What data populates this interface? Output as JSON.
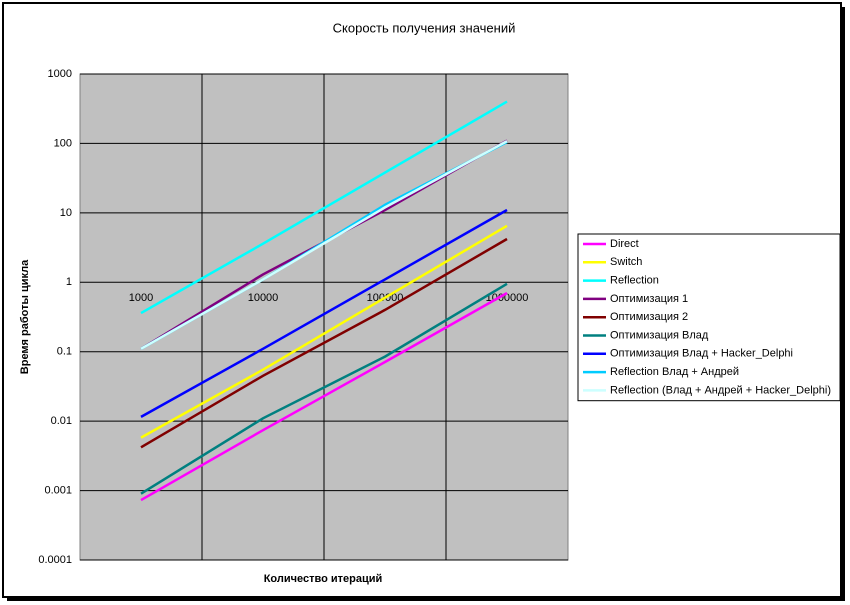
{
  "chart_data": {
    "type": "line",
    "title": "Скорость получения значений",
    "x_label": "Количество итераций",
    "y_label": "Время работы цикла",
    "categories": [
      "1000",
      "10000",
      "100000",
      "1000000"
    ],
    "log_y": true,
    "grid": true,
    "legend_position": "right",
    "plot_background": "#c0c0c0",
    "ylim": [
      0.0001,
      1000
    ],
    "yticks": [
      0.0001,
      0.001,
      0.01,
      0.1,
      1,
      10,
      100,
      1000
    ],
    "series": [
      {
        "name": "Direct",
        "color": "#ff00ff",
        "values": [
          0.00073,
          0.0074,
          0.071,
          0.7
        ]
      },
      {
        "name": "Switch",
        "color": "#ffff00",
        "values": [
          0.0058,
          0.055,
          0.6,
          6.5
        ]
      },
      {
        "name": "Reflection",
        "color": "#00ffff",
        "values": [
          0.36,
          3.6,
          38,
          400
        ]
      },
      {
        "name": "Оптимизация 1",
        "color": "#800080",
        "values": [
          0.11,
          1.3,
          11,
          110
        ]
      },
      {
        "name": "Оптимизация 2",
        "color": "#800000",
        "values": [
          0.0042,
          0.045,
          0.4,
          4.2
        ]
      },
      {
        "name": "Оптимизация Влад",
        "color": "#008080",
        "values": [
          0.0009,
          0.011,
          0.085,
          0.95
        ]
      },
      {
        "name": "Оптимизация Влад + Hacker_Delphi",
        "color": "#0000ff",
        "values": [
          0.0115,
          0.11,
          1.1,
          11
        ]
      },
      {
        "name": "Reflection Влад + Андрей",
        "color": "#00ccff",
        "values": [
          0.11,
          1.1,
          13,
          105
        ]
      },
      {
        "name": "Reflection (Влад + Андрей + Hacker_Delphi)",
        "color": "#ccffff",
        "values": [
          0.11,
          1.1,
          12,
          108
        ]
      }
    ]
  }
}
